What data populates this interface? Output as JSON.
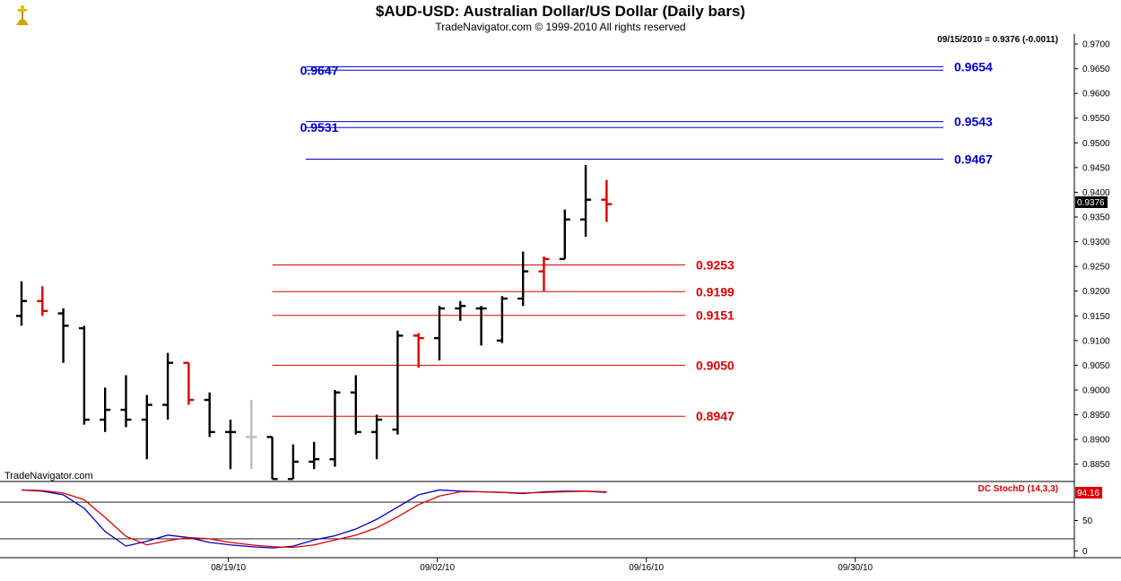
{
  "header": {
    "title": "$AUD-USD:  Australian Dollar/US Dollar  (Daily bars)",
    "subtitle": "TradeNavigator.com © 1999-2010 All rights reserved",
    "last_bar_info": "09/15/2010 = 0.9376 (-0.0011)",
    "watermark": "TradeNavigator.com",
    "logo_icon": "gold-scale-logo-icon"
  },
  "colors": {
    "up_bar": "#000000",
    "down_bar": "#e00000",
    "neutral_bar": "#bbbbbb",
    "resistance": "#0000cc",
    "support": "#e00000",
    "stoch_k": "#0000cc",
    "stoch_d": "#e00000"
  },
  "chart_data": [
    {
      "type": "ohlc",
      "title": "$AUD-USD:  Australian Dollar/US Dollar  (Daily bars)",
      "price_labels": [
        "0.9700",
        "0.9650",
        "0.9600",
        "0.9550",
        "0.9500",
        "0.9450",
        "0.9400",
        "0.9350",
        "0.9300",
        "0.9250",
        "0.9200",
        "0.9150",
        "0.9100",
        "0.9050",
        "0.9000",
        "0.8950",
        "0.8900",
        "0.8850"
      ],
      "ylim": [
        0.8815,
        0.972
      ],
      "date_labels": [
        "08/19/10",
        "09/02/10",
        "09/16/10",
        "09/30/10"
      ],
      "date_label_index": [
        9.9,
        19.9,
        29.9,
        39.9
      ],
      "current_price": "0.9376",
      "bars": [
        {
          "o": 0.915,
          "h": 0.922,
          "l": 0.913,
          "c": 0.918,
          "col": "up"
        },
        {
          "o": 0.918,
          "h": 0.921,
          "l": 0.915,
          "c": 0.916,
          "col": "down"
        },
        {
          "o": 0.9155,
          "h": 0.9165,
          "l": 0.9055,
          "c": 0.913,
          "col": "up"
        },
        {
          "o": 0.9125,
          "h": 0.913,
          "l": 0.893,
          "c": 0.894,
          "col": "up"
        },
        {
          "o": 0.894,
          "h": 0.9005,
          "l": 0.8915,
          "c": 0.896,
          "col": "up"
        },
        {
          "o": 0.896,
          "h": 0.903,
          "l": 0.8925,
          "c": 0.894,
          "col": "up"
        },
        {
          "o": 0.894,
          "h": 0.899,
          "l": 0.886,
          "c": 0.897,
          "col": "up"
        },
        {
          "o": 0.897,
          "h": 0.9075,
          "l": 0.894,
          "c": 0.9055,
          "col": "up"
        },
        {
          "o": 0.9055,
          "h": 0.9055,
          "l": 0.897,
          "c": 0.898,
          "col": "down"
        },
        {
          "o": 0.898,
          "h": 0.8995,
          "l": 0.8905,
          "c": 0.8915,
          "col": "up"
        },
        {
          "o": 0.8915,
          "h": 0.894,
          "l": 0.884,
          "c": 0.8915,
          "col": "up"
        },
        {
          "o": 0.8905,
          "h": 0.898,
          "l": 0.884,
          "c": 0.8905,
          "col": "neutral"
        },
        {
          "o": 0.8905,
          "h": 0.8905,
          "l": 0.882,
          "c": 0.882,
          "col": "up"
        },
        {
          "o": 0.882,
          "h": 0.889,
          "l": 0.882,
          "c": 0.8855,
          "col": "up"
        },
        {
          "o": 0.8855,
          "h": 0.8895,
          "l": 0.884,
          "c": 0.886,
          "col": "up"
        },
        {
          "o": 0.886,
          "h": 0.9,
          "l": 0.8845,
          "c": 0.8995,
          "col": "up"
        },
        {
          "o": 0.8995,
          "h": 0.903,
          "l": 0.891,
          "c": 0.8915,
          "col": "up"
        },
        {
          "o": 0.8915,
          "h": 0.895,
          "l": 0.886,
          "c": 0.894,
          "col": "up"
        },
        {
          "o": 0.892,
          "h": 0.912,
          "l": 0.891,
          "c": 0.911,
          "col": "up"
        },
        {
          "o": 0.911,
          "h": 0.9115,
          "l": 0.9045,
          "c": 0.9105,
          "col": "down"
        },
        {
          "o": 0.9105,
          "h": 0.917,
          "l": 0.906,
          "c": 0.9165,
          "col": "up"
        },
        {
          "o": 0.9165,
          "h": 0.918,
          "l": 0.914,
          "c": 0.917,
          "col": "up"
        },
        {
          "o": 0.9165,
          "h": 0.917,
          "l": 0.909,
          "c": 0.9165,
          "col": "up"
        },
        {
          "o": 0.91,
          "h": 0.919,
          "l": 0.9095,
          "c": 0.9185,
          "col": "up"
        },
        {
          "o": 0.9185,
          "h": 0.928,
          "l": 0.917,
          "c": 0.924,
          "col": "up"
        },
        {
          "o": 0.924,
          "h": 0.927,
          "l": 0.92,
          "c": 0.9265,
          "col": "down"
        },
        {
          "o": 0.9265,
          "h": 0.9365,
          "l": 0.9265,
          "c": 0.9345,
          "col": "up"
        },
        {
          "o": 0.9345,
          "h": 0.9455,
          "l": 0.931,
          "c": 0.9385,
          "col": "up"
        },
        {
          "o": 0.9385,
          "h": 0.9425,
          "l": 0.934,
          "c": 0.9376,
          "col": "down"
        }
      ],
      "levels": [
        {
          "value": 0.9654,
          "label": "0.9654",
          "kind": "resistance",
          "side": "right",
          "from_index": 13.6
        },
        {
          "value": 0.9647,
          "label": "0.9647",
          "kind": "resistance",
          "side": "left",
          "from_index": 13.6
        },
        {
          "value": 0.9543,
          "label": "0.9543",
          "kind": "resistance",
          "side": "right",
          "from_index": 13.6
        },
        {
          "value": 0.9531,
          "label": "0.9531",
          "kind": "resistance",
          "side": "left",
          "from_index": 13.6
        },
        {
          "value": 0.9467,
          "label": "0.9467",
          "kind": "resistance",
          "side": "right",
          "from_index": 13.6
        },
        {
          "value": 0.9253,
          "label": "0.9253",
          "kind": "support",
          "side": "right",
          "from_index": 12
        },
        {
          "value": 0.9199,
          "label": "0.9199",
          "kind": "support",
          "side": "right",
          "from_index": 12
        },
        {
          "value": 0.9151,
          "label": "0.9151",
          "kind": "support",
          "side": "right",
          "from_index": 12
        },
        {
          "value": 0.905,
          "label": "0.9050",
          "kind": "support",
          "side": "right",
          "from_index": 12
        },
        {
          "value": 0.8947,
          "label": "0.8947",
          "kind": "support",
          "side": "right",
          "from_index": 12
        }
      ]
    },
    {
      "type": "line",
      "title": "DC StochD (14,3,3)",
      "current_value": "94.16",
      "y_labels": [
        "50",
        "0"
      ],
      "ylim": [
        -8,
        108
      ],
      "reference_lines": [
        80,
        20
      ],
      "series": [
        {
          "name": "K",
          "values": [
            100,
            98,
            92,
            70,
            32,
            8,
            16,
            26,
            22,
            14,
            10,
            7,
            5,
            8,
            18,
            25,
            36,
            52,
            72,
            92,
            100,
            98,
            97,
            96,
            94,
            97,
            98,
            98,
            96
          ]
        },
        {
          "name": "D",
          "values": [
            100,
            99,
            95,
            84,
            55,
            24,
            10,
            17,
            22,
            20,
            14,
            10,
            7,
            6,
            10,
            18,
            26,
            38,
            56,
            76,
            90,
            97,
            97,
            96,
            95,
            96,
            97,
            98,
            97
          ]
        }
      ]
    }
  ]
}
